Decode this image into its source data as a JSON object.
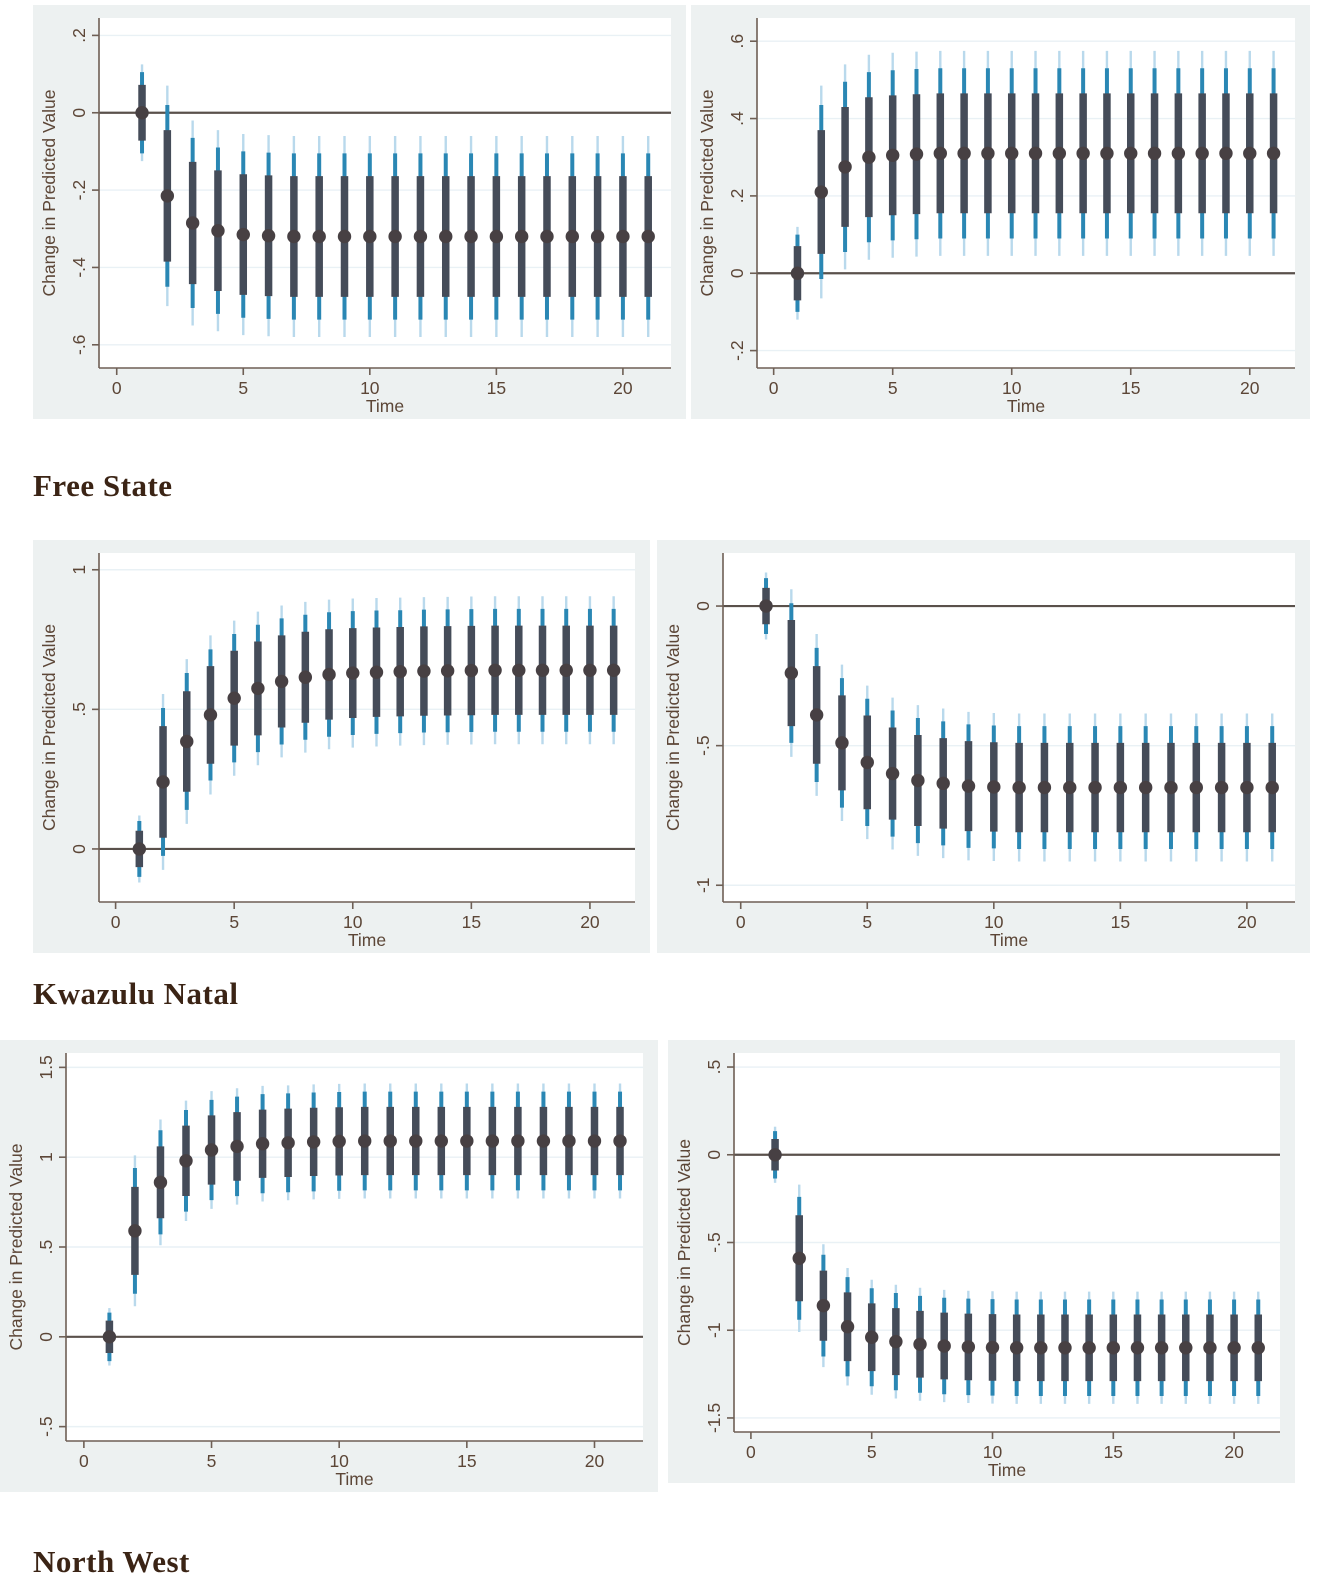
{
  "page": {
    "background": "#ffffff"
  },
  "style": {
    "panel_bg": "#edf1f1",
    "plot_bg": "#ffffff",
    "grid_color": "#e9f1f5",
    "axis_color": "#6e5f55",
    "text_color": "#5c4637",
    "zero_line_color": "#5a514b",
    "heading_color": "#3b2415",
    "point_color": "#474043",
    "ci_inner_color": "#454c59",
    "ci_middle_color": "#2a87b4",
    "ci_outer_color": "#b9d9ec"
  },
  "sections": [
    {
      "label": "Free State"
    },
    {
      "label": "Kwazulu Natal"
    },
    {
      "label": "North West"
    }
  ],
  "chart_data": [
    {
      "type": "scatter",
      "panel": "row1-left",
      "title": "",
      "xlabel": "Time",
      "ylabel": "Change in Predicted Value",
      "xlim": [
        -0.7,
        21.9
      ],
      "ylim": [
        -0.66,
        0.245
      ],
      "xticks": [
        0,
        5,
        10,
        15,
        20
      ],
      "yticks": [
        {
          "v": 0.2,
          "label": ".2"
        },
        {
          "v": 0,
          "label": "0"
        },
        {
          "v": -0.2,
          "label": "-.2"
        },
        {
          "v": -0.4,
          "label": "-.4"
        },
        {
          "v": -0.6,
          "label": "-.6"
        }
      ],
      "zero_line": 0,
      "grid": true,
      "legend": "none",
      "x": [
        1,
        2,
        3,
        4,
        5,
        6,
        7,
        8,
        9,
        10,
        11,
        12,
        13,
        14,
        15,
        16,
        17,
        18,
        19,
        20,
        21
      ],
      "y": [
        0,
        -0.215,
        -0.285,
        -0.305,
        -0.315,
        -0.318,
        -0.32,
        -0.32,
        -0.32,
        -0.32,
        -0.32,
        -0.32,
        -0.32,
        -0.32,
        -0.32,
        -0.32,
        -0.32,
        -0.32,
        -0.32,
        -0.32,
        -0.32
      ],
      "ci_inner_halfwidth": [
        0.072,
        0.17,
        0.158,
        0.156,
        0.156,
        0.156,
        0.156,
        0.156,
        0.156,
        0.156,
        0.156,
        0.156,
        0.156,
        0.156,
        0.156,
        0.156,
        0.156,
        0.156,
        0.156,
        0.156,
        0.156
      ],
      "ci_middle_halfwidth": [
        0.105,
        0.235,
        0.22,
        0.215,
        0.215,
        0.215,
        0.215,
        0.215,
        0.215,
        0.215,
        0.215,
        0.215,
        0.215,
        0.215,
        0.215,
        0.215,
        0.215,
        0.215,
        0.215,
        0.215,
        0.215
      ],
      "ci_outer_halfwidth": [
        0.125,
        0.285,
        0.265,
        0.26,
        0.26,
        0.26,
        0.26,
        0.26,
        0.26,
        0.26,
        0.26,
        0.26,
        0.26,
        0.26,
        0.26,
        0.26,
        0.26,
        0.26,
        0.26,
        0.26,
        0.26
      ]
    },
    {
      "type": "scatter",
      "panel": "row1-right",
      "title": "",
      "xlabel": "Time",
      "ylabel": "Change in Predicted Value",
      "xlim": [
        -0.7,
        21.9
      ],
      "ylim": [
        -0.245,
        0.66
      ],
      "xticks": [
        0,
        5,
        10,
        15,
        20
      ],
      "yticks": [
        {
          "v": 0.6,
          "label": ".6"
        },
        {
          "v": 0.4,
          "label": ".4"
        },
        {
          "v": 0.2,
          "label": ".2"
        },
        {
          "v": 0,
          "label": "0"
        },
        {
          "v": -0.2,
          "label": "-.2"
        }
      ],
      "zero_line": 0,
      "grid": true,
      "legend": "none",
      "x": [
        1,
        2,
        3,
        4,
        5,
        6,
        7,
        8,
        9,
        10,
        11,
        12,
        13,
        14,
        15,
        16,
        17,
        18,
        19,
        20,
        21
      ],
      "y": [
        0,
        0.21,
        0.275,
        0.3,
        0.305,
        0.308,
        0.31,
        0.31,
        0.31,
        0.31,
        0.31,
        0.31,
        0.31,
        0.31,
        0.31,
        0.31,
        0.31,
        0.31,
        0.31,
        0.31,
        0.31
      ],
      "ci_inner_halfwidth": [
        0.07,
        0.16,
        0.155,
        0.155,
        0.155,
        0.155,
        0.155,
        0.155,
        0.155,
        0.155,
        0.155,
        0.155,
        0.155,
        0.155,
        0.155,
        0.155,
        0.155,
        0.155,
        0.155,
        0.155,
        0.155
      ],
      "ci_middle_halfwidth": [
        0.1,
        0.225,
        0.22,
        0.22,
        0.22,
        0.22,
        0.22,
        0.22,
        0.22,
        0.22,
        0.22,
        0.22,
        0.22,
        0.22,
        0.22,
        0.22,
        0.22,
        0.22,
        0.22,
        0.22,
        0.22
      ],
      "ci_outer_halfwidth": [
        0.12,
        0.275,
        0.265,
        0.265,
        0.265,
        0.265,
        0.265,
        0.265,
        0.265,
        0.265,
        0.265,
        0.265,
        0.265,
        0.265,
        0.265,
        0.265,
        0.265,
        0.265,
        0.265,
        0.265,
        0.265
      ]
    },
    {
      "type": "scatter",
      "panel": "row2-left",
      "title": "",
      "xlabel": "Time",
      "ylabel": "Change in Predicted Value",
      "xlim": [
        -0.7,
        21.9
      ],
      "ylim": [
        -0.19,
        1.06
      ],
      "xticks": [
        0,
        5,
        10,
        15,
        20
      ],
      "yticks": [
        {
          "v": 1,
          "label": "1"
        },
        {
          "v": 0.5,
          "label": ".5"
        },
        {
          "v": 0,
          "label": "0"
        }
      ],
      "zero_line": 0,
      "grid": true,
      "legend": "none",
      "x": [
        1,
        2,
        3,
        4,
        5,
        6,
        7,
        8,
        9,
        10,
        11,
        12,
        13,
        14,
        15,
        16,
        17,
        18,
        19,
        20,
        21
      ],
      "y": [
        0,
        0.24,
        0.385,
        0.48,
        0.54,
        0.575,
        0.6,
        0.615,
        0.625,
        0.63,
        0.633,
        0.635,
        0.637,
        0.638,
        0.639,
        0.64,
        0.64,
        0.64,
        0.64,
        0.64,
        0.64
      ],
      "ci_inner_halfwidth": [
        0.065,
        0.2,
        0.18,
        0.175,
        0.17,
        0.168,
        0.165,
        0.163,
        0.162,
        0.161,
        0.16,
        0.16,
        0.16,
        0.16,
        0.16,
        0.16,
        0.16,
        0.16,
        0.16,
        0.16,
        0.16
      ],
      "ci_middle_halfwidth": [
        0.1,
        0.265,
        0.245,
        0.235,
        0.23,
        0.228,
        0.226,
        0.224,
        0.223,
        0.222,
        0.221,
        0.22,
        0.22,
        0.22,
        0.22,
        0.22,
        0.22,
        0.22,
        0.22,
        0.22,
        0.22
      ],
      "ci_outer_halfwidth": [
        0.12,
        0.315,
        0.295,
        0.285,
        0.278,
        0.275,
        0.272,
        0.27,
        0.268,
        0.267,
        0.266,
        0.265,
        0.265,
        0.265,
        0.265,
        0.265,
        0.265,
        0.265,
        0.265,
        0.265,
        0.265
      ]
    },
    {
      "type": "scatter",
      "panel": "row2-right",
      "title": "",
      "xlabel": "Time",
      "ylabel": "Change in Predicted Value",
      "xlim": [
        -0.7,
        21.9
      ],
      "ylim": [
        -1.06,
        0.19
      ],
      "xticks": [
        0,
        5,
        10,
        15,
        20
      ],
      "yticks": [
        {
          "v": 0,
          "label": "0"
        },
        {
          "v": -0.5,
          "label": "-.5"
        },
        {
          "v": -1,
          "label": "-1"
        }
      ],
      "zero_line": 0,
      "grid": true,
      "legend": "none",
      "x": [
        1,
        2,
        3,
        4,
        5,
        6,
        7,
        8,
        9,
        10,
        11,
        12,
        13,
        14,
        15,
        16,
        17,
        18,
        19,
        20,
        21
      ],
      "y": [
        0,
        -0.24,
        -0.39,
        -0.49,
        -0.56,
        -0.6,
        -0.625,
        -0.635,
        -0.645,
        -0.648,
        -0.65,
        -0.65,
        -0.65,
        -0.65,
        -0.65,
        -0.65,
        -0.65,
        -0.65,
        -0.65,
        -0.65,
        -0.65
      ],
      "ci_inner_halfwidth": [
        0.065,
        0.19,
        0.175,
        0.17,
        0.168,
        0.165,
        0.163,
        0.162,
        0.161,
        0.16,
        0.16,
        0.16,
        0.16,
        0.16,
        0.16,
        0.16,
        0.16,
        0.16,
        0.16,
        0.16,
        0.16
      ],
      "ci_middle_halfwidth": [
        0.1,
        0.25,
        0.24,
        0.232,
        0.228,
        0.226,
        0.224,
        0.222,
        0.221,
        0.22,
        0.22,
        0.22,
        0.22,
        0.22,
        0.22,
        0.22,
        0.22,
        0.22,
        0.22,
        0.22,
        0.22
      ],
      "ci_outer_halfwidth": [
        0.12,
        0.3,
        0.29,
        0.28,
        0.275,
        0.272,
        0.27,
        0.268,
        0.266,
        0.265,
        0.265,
        0.265,
        0.265,
        0.265,
        0.265,
        0.265,
        0.265,
        0.265,
        0.265,
        0.265,
        0.265
      ]
    },
    {
      "type": "scatter",
      "panel": "row3-left",
      "title": "",
      "xlabel": "Time",
      "ylabel": "Change in Predicted Value",
      "xlim": [
        -0.7,
        21.9
      ],
      "ylim": [
        -0.58,
        1.58
      ],
      "xticks": [
        0,
        5,
        10,
        15,
        20
      ],
      "yticks": [
        {
          "v": 1.5,
          "label": "1.5"
        },
        {
          "v": 1,
          "label": "1"
        },
        {
          "v": 0.5,
          "label": ".5"
        },
        {
          "v": 0,
          "label": "0"
        },
        {
          "v": -0.5,
          "label": "-.5"
        }
      ],
      "zero_line": 0,
      "grid": true,
      "legend": "none",
      "x": [
        1,
        2,
        3,
        4,
        5,
        6,
        7,
        8,
        9,
        10,
        11,
        12,
        13,
        14,
        15,
        16,
        17,
        18,
        19,
        20,
        21
      ],
      "y": [
        0,
        0.59,
        0.86,
        0.98,
        1.04,
        1.06,
        1.075,
        1.08,
        1.085,
        1.088,
        1.09,
        1.09,
        1.09,
        1.09,
        1.09,
        1.09,
        1.09,
        1.09,
        1.09,
        1.09,
        1.09
      ],
      "ci_inner_halfwidth": [
        0.09,
        0.245,
        0.2,
        0.196,
        0.193,
        0.191,
        0.19,
        0.19,
        0.19,
        0.19,
        0.19,
        0.19,
        0.19,
        0.19,
        0.19,
        0.19,
        0.19,
        0.19,
        0.19,
        0.19,
        0.19
      ],
      "ci_middle_halfwidth": [
        0.135,
        0.35,
        0.29,
        0.283,
        0.279,
        0.277,
        0.276,
        0.275,
        0.275,
        0.275,
        0.275,
        0.275,
        0.275,
        0.275,
        0.275,
        0.275,
        0.275,
        0.275,
        0.275,
        0.275,
        0.275
      ],
      "ci_outer_halfwidth": [
        0.16,
        0.42,
        0.35,
        0.335,
        0.328,
        0.324,
        0.322,
        0.32,
        0.32,
        0.32,
        0.32,
        0.32,
        0.32,
        0.32,
        0.32,
        0.32,
        0.32,
        0.32,
        0.32,
        0.32,
        0.32
      ]
    },
    {
      "type": "scatter",
      "panel": "row3-right",
      "title": "",
      "xlabel": "Time",
      "ylabel": "Change in Predicted Value",
      "xlim": [
        -0.7,
        21.9
      ],
      "ylim": [
        -1.58,
        0.58
      ],
      "xticks": [
        0,
        5,
        10,
        15,
        20
      ],
      "yticks": [
        {
          "v": 0.5,
          "label": ".5"
        },
        {
          "v": 0,
          "label": "0"
        },
        {
          "v": -0.5,
          "label": "-.5"
        },
        {
          "v": -1,
          "label": "-1"
        },
        {
          "v": -1.5,
          "label": "-1.5"
        }
      ],
      "zero_line": 0,
      "grid": true,
      "legend": "none",
      "x": [
        1,
        2,
        3,
        4,
        5,
        6,
        7,
        8,
        9,
        10,
        11,
        12,
        13,
        14,
        15,
        16,
        17,
        18,
        19,
        20,
        21
      ],
      "y": [
        0,
        -0.59,
        -0.86,
        -0.98,
        -1.04,
        -1.065,
        -1.08,
        -1.09,
        -1.095,
        -1.098,
        -1.1,
        -1.1,
        -1.1,
        -1.1,
        -1.1,
        -1.1,
        -1.1,
        -1.1,
        -1.1,
        -1.1,
        -1.1
      ],
      "ci_inner_halfwidth": [
        0.09,
        0.245,
        0.2,
        0.196,
        0.193,
        0.191,
        0.19,
        0.19,
        0.19,
        0.19,
        0.19,
        0.19,
        0.19,
        0.19,
        0.19,
        0.19,
        0.19,
        0.19,
        0.19,
        0.19,
        0.19
      ],
      "ci_middle_halfwidth": [
        0.135,
        0.35,
        0.29,
        0.283,
        0.279,
        0.277,
        0.276,
        0.275,
        0.275,
        0.275,
        0.275,
        0.275,
        0.275,
        0.275,
        0.275,
        0.275,
        0.275,
        0.275,
        0.275,
        0.275,
        0.275
      ],
      "ci_outer_halfwidth": [
        0.16,
        0.42,
        0.35,
        0.335,
        0.328,
        0.324,
        0.322,
        0.32,
        0.32,
        0.32,
        0.32,
        0.32,
        0.32,
        0.32,
        0.32,
        0.32,
        0.32,
        0.32,
        0.32,
        0.32,
        0.32
      ]
    }
  ]
}
